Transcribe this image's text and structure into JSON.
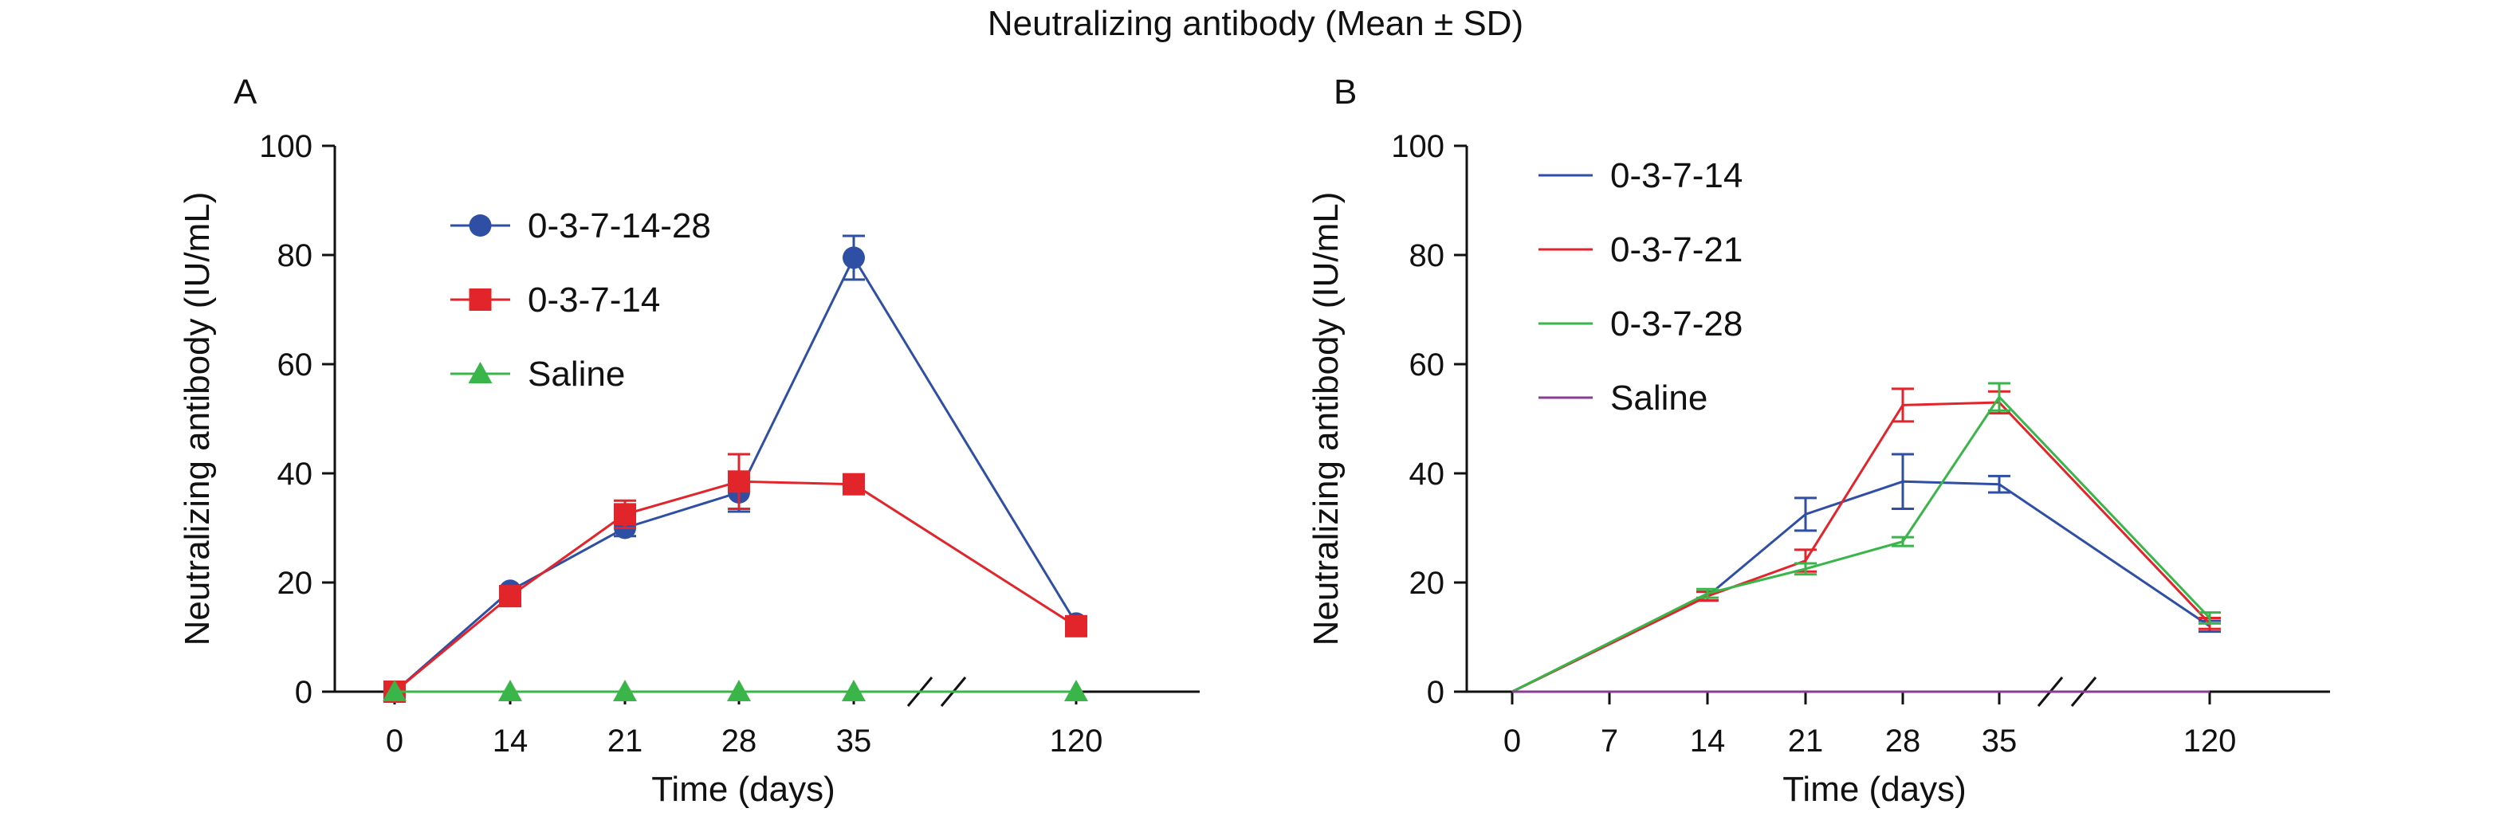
{
  "title": "Neutralizing antibody (Mean ± SD)",
  "colors": {
    "blue": "#2f4fa5",
    "red": "#e2242b",
    "green": "#3ab54a",
    "purple": "#8a3d96"
  },
  "chart_data": [
    {
      "panel": "A",
      "type": "line",
      "xlabel": "Time (days)",
      "ylabel": "Neutralizing antibody (IU/mL)",
      "ylim": [
        0,
        100
      ],
      "yticks": [
        0,
        20,
        40,
        60,
        80,
        100
      ],
      "x": [
        0,
        14,
        21,
        28,
        35,
        120
      ],
      "xticks": [
        0,
        14,
        21,
        28,
        35,
        120
      ],
      "axis_break_between": [
        35,
        120
      ],
      "grid": false,
      "legend_position": "top-left",
      "series": [
        {
          "name": "0-3-7-14-28",
          "color": "#2f4fa5",
          "marker": "circle",
          "values": [
            0,
            18.5,
            30,
            36.5,
            79.5,
            12.5
          ],
          "sd": [
            0,
            0.8,
            1.5,
            3.5,
            4,
            0.8
          ]
        },
        {
          "name": "0-3-7-14",
          "color": "#e2242b",
          "marker": "square",
          "values": [
            0,
            17.5,
            32.5,
            38.5,
            38,
            12
          ],
          "sd": [
            0,
            0.8,
            2.5,
            5,
            1,
            0.8
          ]
        },
        {
          "name": "Saline",
          "color": "#3ab54a",
          "marker": "triangle",
          "values": [
            0,
            0,
            0,
            0,
            0,
            0
          ],
          "sd": [
            0,
            0,
            0,
            0,
            0,
            0
          ]
        }
      ]
    },
    {
      "panel": "B",
      "type": "line",
      "xlabel": "Time (days)",
      "ylabel": "Neutralizing antibody (IU/mL)",
      "ylim": [
        0,
        100
      ],
      "yticks": [
        0,
        20,
        40,
        60,
        80,
        100
      ],
      "x": [
        0,
        14,
        21,
        28,
        35,
        120
      ],
      "xticks": [
        0,
        7,
        14,
        21,
        28,
        35,
        120
      ],
      "axis_break_between": [
        35,
        120
      ],
      "grid": false,
      "legend_position": "top-left",
      "series": [
        {
          "name": "0-3-7-14",
          "color": "#2f4fa5",
          "marker": "none",
          "values": [
            0,
            17.5,
            32.5,
            38.5,
            38,
            12
          ],
          "sd": [
            0,
            0.8,
            3,
            5,
            1.5,
            1
          ]
        },
        {
          "name": "0-3-7-21",
          "color": "#e2242b",
          "marker": "none",
          "values": [
            0,
            17.5,
            24,
            52.5,
            53,
            12.5
          ],
          "sd": [
            0,
            0.8,
            2,
            3,
            2,
            1
          ]
        },
        {
          "name": "0-3-7-28",
          "color": "#3ab54a",
          "marker": "none",
          "values": [
            0,
            18,
            22.5,
            27.5,
            54,
            13.5
          ],
          "sd": [
            0,
            0.8,
            1,
            0.8,
            2.5,
            1
          ]
        },
        {
          "name": "Saline",
          "color": "#8a3d96",
          "marker": "none",
          "values": [
            0,
            0,
            0,
            0,
            0,
            0
          ],
          "sd": [
            0,
            0,
            0,
            0,
            0,
            0
          ]
        }
      ]
    }
  ]
}
